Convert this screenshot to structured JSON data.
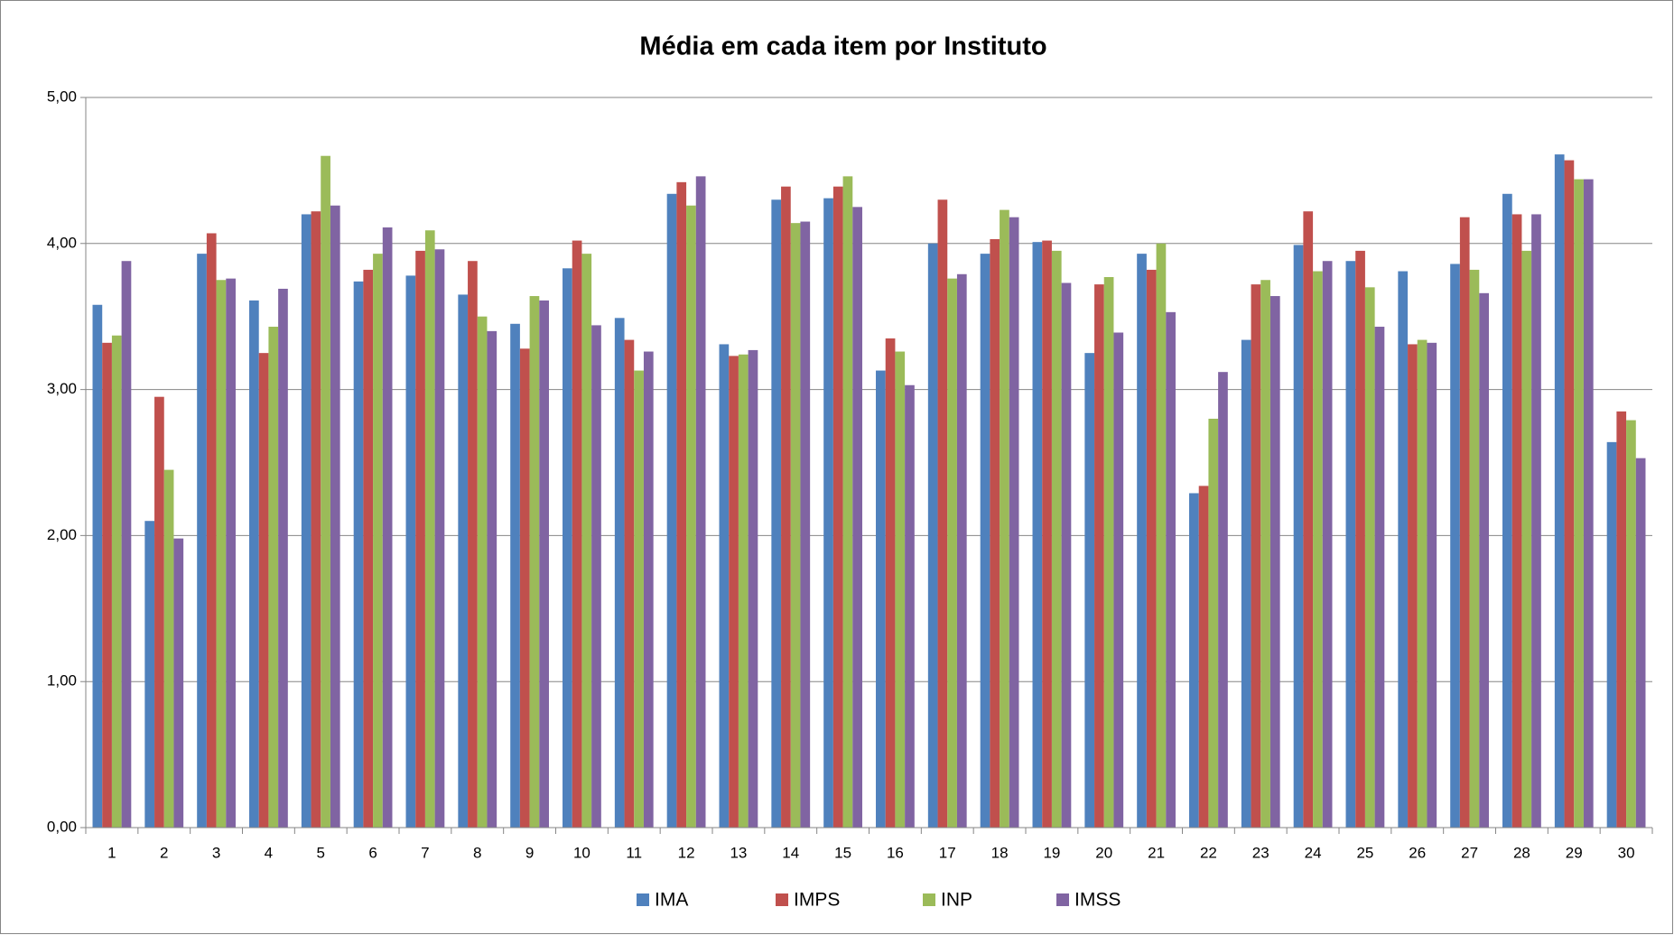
{
  "chart_data": {
    "type": "bar",
    "title": "Média em cada item por Instituto",
    "categories": [
      "1",
      "2",
      "3",
      "4",
      "5",
      "6",
      "7",
      "8",
      "9",
      "10",
      "11",
      "12",
      "13",
      "14",
      "15",
      "16",
      "17",
      "18",
      "19",
      "20",
      "21",
      "22",
      "23",
      "24",
      "25",
      "26",
      "27",
      "28",
      "29",
      "30"
    ],
    "series": [
      {
        "name": "IMA",
        "color": "#4f81bd",
        "values": [
          3.58,
          2.1,
          3.93,
          3.61,
          4.2,
          3.74,
          3.78,
          3.65,
          3.45,
          3.83,
          3.49,
          4.34,
          3.31,
          4.3,
          4.31,
          3.13,
          4.0,
          3.93,
          4.01,
          3.25,
          3.93,
          2.29,
          3.34,
          3.99,
          3.88,
          3.81,
          3.86,
          4.34,
          4.61,
          2.64
        ]
      },
      {
        "name": "IMPS",
        "color": "#c0504d",
        "values": [
          3.32,
          2.95,
          4.07,
          3.25,
          4.22,
          3.82,
          3.95,
          3.88,
          3.28,
          4.02,
          3.34,
          4.42,
          3.23,
          4.39,
          4.39,
          3.35,
          4.3,
          4.03,
          4.02,
          3.72,
          3.82,
          2.34,
          3.72,
          4.22,
          3.95,
          3.31,
          4.18,
          4.2,
          4.57,
          2.85
        ]
      },
      {
        "name": "INP",
        "color": "#9bbb59",
        "values": [
          3.37,
          2.45,
          3.75,
          3.43,
          4.6,
          3.93,
          4.09,
          3.5,
          3.64,
          3.93,
          3.13,
          4.26,
          3.24,
          4.14,
          4.46,
          3.26,
          3.76,
          4.23,
          3.95,
          3.77,
          4.0,
          2.8,
          3.75,
          3.81,
          3.7,
          3.34,
          3.82,
          3.95,
          4.44,
          2.79
        ]
      },
      {
        "name": "IMSS",
        "color": "#8064a2",
        "values": [
          3.88,
          1.98,
          3.76,
          3.69,
          4.26,
          4.11,
          3.96,
          3.4,
          3.61,
          3.44,
          3.26,
          4.46,
          3.27,
          4.15,
          4.25,
          3.03,
          3.79,
          4.18,
          3.73,
          3.39,
          3.53,
          3.12,
          3.64,
          3.88,
          3.43,
          3.32,
          3.66,
          4.2,
          4.44,
          2.53
        ]
      }
    ],
    "ylim": [
      0,
      5
    ],
    "yticks": [
      {
        "value": 0,
        "label": "0,00"
      },
      {
        "value": 1,
        "label": "1,00"
      },
      {
        "value": 2,
        "label": "2,00"
      },
      {
        "value": 3,
        "label": "3,00"
      },
      {
        "value": 4,
        "label": "4,00"
      },
      {
        "value": 5,
        "label": "5,00"
      }
    ],
    "grid": true,
    "legend": "bottom"
  }
}
